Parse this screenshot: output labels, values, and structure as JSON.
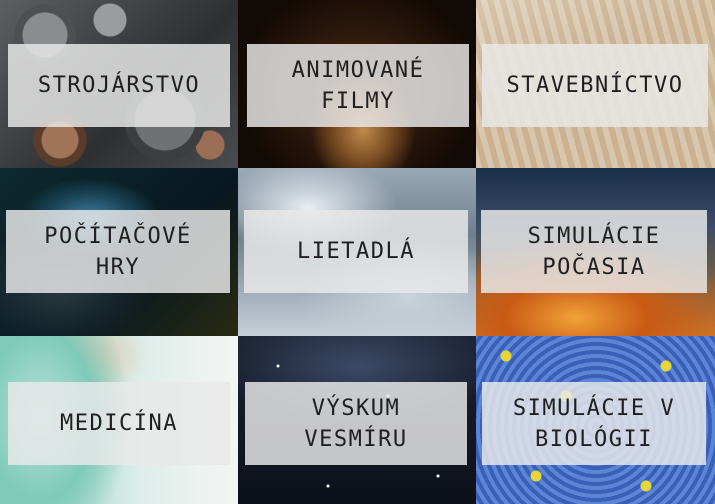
{
  "tiles": [
    {
      "label": "STROJÁRSTVO"
    },
    {
      "label": "ANIMOVANÉ\nFILMY"
    },
    {
      "label": "STAVEBNÍCTVO"
    },
    {
      "label": "POČÍTAČOVÉ\nHRY"
    },
    {
      "label": "LIETADLÁ"
    },
    {
      "label": "SIMULÁCIE\nPOČASIA"
    },
    {
      "label": "MEDICÍNA"
    },
    {
      "label": "VÝSKUM\nVESMÍRU"
    },
    {
      "label": "SIMULÁCIE V\nBIOLÓGII"
    }
  ]
}
